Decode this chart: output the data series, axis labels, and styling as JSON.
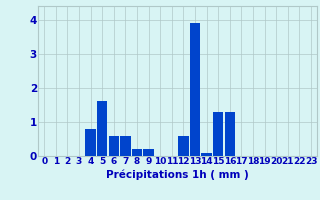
{
  "hours": [
    0,
    1,
    2,
    3,
    4,
    5,
    6,
    7,
    8,
    9,
    10,
    11,
    12,
    13,
    14,
    15,
    16,
    17,
    18,
    19,
    20,
    21,
    22,
    23
  ],
  "values": [
    0,
    0,
    0,
    0,
    0.8,
    1.6,
    0.6,
    0.6,
    0.2,
    0.2,
    0,
    0,
    0.6,
    3.9,
    0.1,
    1.3,
    1.3,
    0,
    0,
    0,
    0,
    0,
    0,
    0
  ],
  "bar_color": "#0044cc",
  "background_color": "#d8f4f4",
  "grid_color": "#b0c8c8",
  "text_color": "#0000bb",
  "xlabel": "Précipitations 1h ( mm )",
  "ylim": [
    0,
    4.4
  ],
  "yticks": [
    0,
    1,
    2,
    3,
    4
  ],
  "xlabel_fontsize": 7.5,
  "tick_fontsize": 6.5
}
